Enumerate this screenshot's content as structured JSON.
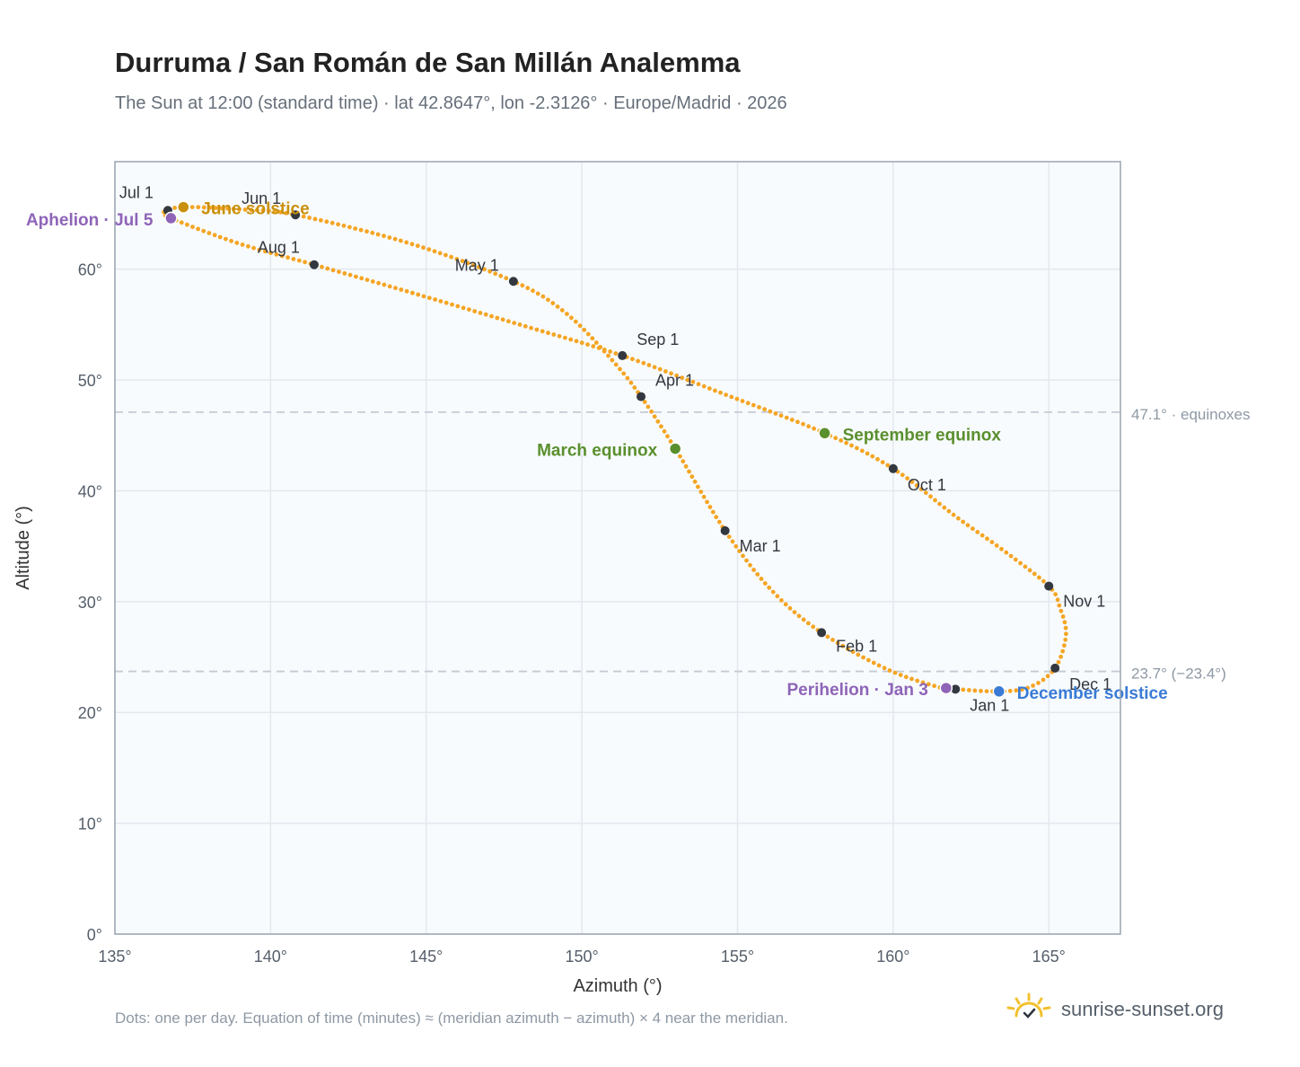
{
  "header": {
    "title": "Durruma / San Román de San Millán Analemma",
    "subtitle": "The Sun at 12:00 (standard time) · lat 42.8647°, lon -2.3126° · Europe/Madrid · 2026"
  },
  "footer": {
    "note": "Dots: one per day. Equation of time (minutes) ≈ (meridian azimuth − azimuth) × 4 near the meridian.",
    "brand": "sunrise-sunset.org",
    "brand_icon": "sun-check-icon"
  },
  "colors": {
    "curve": "#f5a524",
    "month_marker": "#333840",
    "solstice_june": "#c9900c",
    "solstice_december": "#3a7bd5",
    "equinox": "#5a8f2e",
    "apsis": "#8e64b8",
    "reference_line": "#c5cbd3",
    "plot_bg": "#f8fbfd",
    "grid": "#e3e8ee",
    "axis": "#9aa5b1"
  },
  "chart_data": {
    "type": "scatter",
    "xlabel": "Azimuth (°)",
    "ylabel": "Altitude (°)",
    "xlim": [
      135,
      167.3
    ],
    "ylim": [
      0,
      69.7
    ],
    "x_ticks": [
      135,
      140,
      145,
      150,
      155,
      160,
      165
    ],
    "x_tick_labels": [
      "135°",
      "140°",
      "145°",
      "150°",
      "155°",
      "160°",
      "165°"
    ],
    "y_ticks": [
      0,
      10,
      20,
      30,
      40,
      50,
      60
    ],
    "y_tick_labels": [
      "0°",
      "10°",
      "20°",
      "30°",
      "40°",
      "50°",
      "60°"
    ],
    "grid": true,
    "reference_lines": [
      {
        "y": 47.1,
        "label": "47.1° · equinoxes"
      },
      {
        "y": 23.7,
        "label": "23.7° (−23.4°)"
      }
    ],
    "month_markers": [
      {
        "label": "Jan 1",
        "x": 162.0,
        "y": 22.1
      },
      {
        "label": "Feb 1",
        "x": 157.7,
        "y": 27.2
      },
      {
        "label": "Mar 1",
        "x": 154.6,
        "y": 36.4
      },
      {
        "label": "Apr 1",
        "x": 151.9,
        "y": 48.5
      },
      {
        "label": "May 1",
        "x": 147.8,
        "y": 58.9
      },
      {
        "label": "Jun 1",
        "x": 140.8,
        "y": 64.9
      },
      {
        "label": "Jul 1",
        "x": 136.7,
        "y": 65.3
      },
      {
        "label": "Aug 1",
        "x": 141.4,
        "y": 60.4
      },
      {
        "label": "Sep 1",
        "x": 151.3,
        "y": 52.2
      },
      {
        "label": "Oct 1",
        "x": 160.0,
        "y": 42.0
      },
      {
        "label": "Nov 1",
        "x": 165.0,
        "y": 31.4
      },
      {
        "label": "Dec 1",
        "x": 165.2,
        "y": 24.0
      }
    ],
    "events": [
      {
        "label": "June solstice",
        "x": 137.2,
        "y": 65.6,
        "kind": "solstice_june"
      },
      {
        "label": "December solstice",
        "x": 163.4,
        "y": 21.9,
        "kind": "solstice_december"
      },
      {
        "label": "March equinox",
        "x": 153.0,
        "y": 43.8,
        "kind": "equinox"
      },
      {
        "label": "September equinox",
        "x": 157.8,
        "y": 45.2,
        "kind": "equinox"
      },
      {
        "label": "Aphelion · Jul 5",
        "x": 136.8,
        "y": 64.6,
        "kind": "apsis"
      },
      {
        "label": "Perihelion · Jan 3",
        "x": 161.7,
        "y": 22.2,
        "kind": "apsis"
      }
    ],
    "path_anchors": [
      [
        161.5,
        22.25
      ],
      [
        162.0,
        22.1
      ],
      [
        163.4,
        21.9
      ],
      [
        164.4,
        22.3
      ],
      [
        165.2,
        24.0
      ],
      [
        165.55,
        27.0
      ],
      [
        165.35,
        29.5
      ],
      [
        165.0,
        31.4
      ],
      [
        163.5,
        34.7
      ],
      [
        162.0,
        37.7
      ],
      [
        160.0,
        42.0
      ],
      [
        157.8,
        45.2
      ],
      [
        154.5,
        48.8
      ],
      [
        151.3,
        52.2
      ],
      [
        148.0,
        55.0
      ],
      [
        144.5,
        57.9
      ],
      [
        141.4,
        60.4
      ],
      [
        139.0,
        62.3
      ],
      [
        136.8,
        64.6
      ],
      [
        136.6,
        65.2
      ],
      [
        137.2,
        65.6
      ],
      [
        139.0,
        65.4
      ],
      [
        140.8,
        64.9
      ],
      [
        144.5,
        62.3
      ],
      [
        147.8,
        58.9
      ],
      [
        149.5,
        56.0
      ],
      [
        151.0,
        51.7
      ],
      [
        151.9,
        48.5
      ],
      [
        153.0,
        43.8
      ],
      [
        154.6,
        36.4
      ],
      [
        156.1,
        31.0
      ],
      [
        157.7,
        27.2
      ],
      [
        159.8,
        23.9
      ],
      [
        161.5,
        22.25
      ]
    ]
  }
}
